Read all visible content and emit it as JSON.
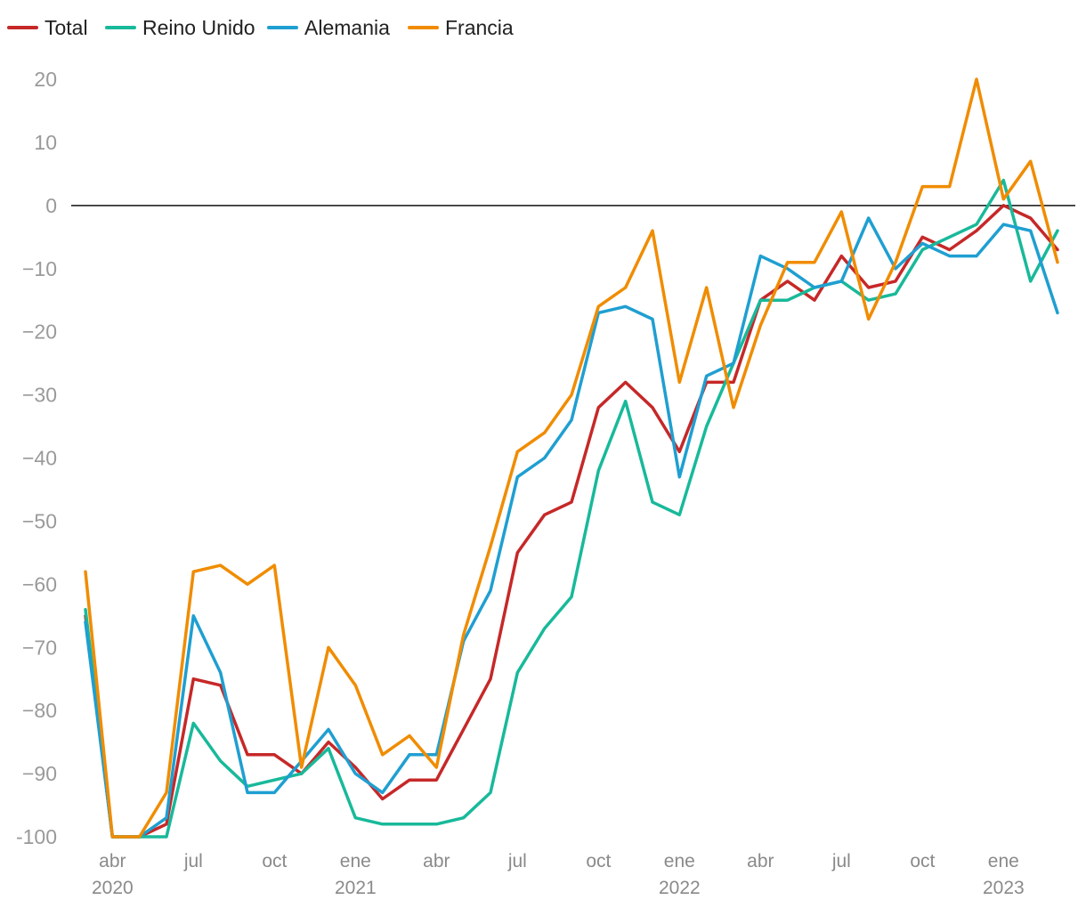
{
  "chart_data": {
    "type": "line",
    "title": "",
    "xlabel": "",
    "ylabel": "",
    "ylim": [
      -100,
      20
    ],
    "yticks": [
      20,
      10,
      0,
      -10,
      -20,
      -30,
      -40,
      -50,
      -60,
      -70,
      -80,
      -90,
      -100
    ],
    "ytick_labels": [
      "20",
      "10",
      "0",
      "−10",
      "−20",
      "−30",
      "−40",
      "−50",
      "−60",
      "−70",
      "−80",
      "−90",
      "-100"
    ],
    "reference_line": 0,
    "grid": false,
    "legend_position": "top-left",
    "x": [
      "2020-03",
      "2020-04",
      "2020-05",
      "2020-06",
      "2020-07",
      "2020-08",
      "2020-09",
      "2020-10",
      "2020-11",
      "2020-12",
      "2021-01",
      "2021-02",
      "2021-03",
      "2021-04",
      "2021-05",
      "2021-06",
      "2021-07",
      "2021-08",
      "2021-09",
      "2021-10",
      "2021-11",
      "2021-12",
      "2022-01",
      "2022-02",
      "2022-03",
      "2022-04",
      "2022-05",
      "2022-06",
      "2022-07",
      "2022-08",
      "2022-09",
      "2022-10",
      "2022-11",
      "2022-12",
      "2023-01",
      "2023-02",
      "2023-03"
    ],
    "x_ticks": [
      {
        "x": "2020-04",
        "label": "abr",
        "year": "2020"
      },
      {
        "x": "2020-07",
        "label": "jul",
        "year": ""
      },
      {
        "x": "2020-10",
        "label": "oct",
        "year": ""
      },
      {
        "x": "2021-01",
        "label": "ene",
        "year": "2021"
      },
      {
        "x": "2021-04",
        "label": "abr",
        "year": ""
      },
      {
        "x": "2021-07",
        "label": "jul",
        "year": ""
      },
      {
        "x": "2021-10",
        "label": "oct",
        "year": ""
      },
      {
        "x": "2022-01",
        "label": "ene",
        "year": "2022"
      },
      {
        "x": "2022-04",
        "label": "abr",
        "year": ""
      },
      {
        "x": "2022-07",
        "label": "jul",
        "year": ""
      },
      {
        "x": "2022-10",
        "label": "oct",
        "year": ""
      },
      {
        "x": "2023-01",
        "label": "ene",
        "year": "2023"
      }
    ],
    "series": [
      {
        "name": "Total",
        "color": "#c62828",
        "values": [
          -65,
          -100,
          -100,
          -98,
          -75,
          -76,
          -87,
          -87,
          -90,
          -85,
          -89,
          -94,
          -91,
          -91,
          -83,
          -75,
          -55,
          -49,
          -47,
          -32,
          -28,
          -32,
          -39,
          -28,
          -28,
          -15,
          -12,
          -15,
          -8,
          -13,
          -12,
          -5,
          -7,
          -4,
          0,
          -2,
          -7
        ]
      },
      {
        "name": "Reino Unido",
        "color": "#18b99a",
        "values": [
          -64,
          -100,
          -100,
          -100,
          -82,
          -88,
          -92,
          -91,
          -90,
          -86,
          -97,
          -98,
          -98,
          -98,
          -97,
          -93,
          -74,
          -67,
          -62,
          -42,
          -31,
          -47,
          -49,
          -35,
          -25,
          -15,
          -15,
          -13,
          -12,
          -15,
          -14,
          -7,
          -5,
          -3,
          4,
          -12,
          -4
        ]
      },
      {
        "name": "Alemania",
        "color": "#1f9fd1",
        "values": [
          -66,
          -100,
          -100,
          -97,
          -65,
          -74,
          -93,
          -93,
          -88,
          -83,
          -90,
          -93,
          -87,
          -87,
          -69,
          -61,
          -43,
          -40,
          -34,
          -17,
          -16,
          -18,
          -43,
          -27,
          -25,
          -8,
          -10,
          -13,
          -12,
          -2,
          -10,
          -6,
          -8,
          -8,
          -3,
          -4,
          -17
        ]
      },
      {
        "name": "Francia",
        "color": "#f08c00",
        "values": [
          -58,
          -100,
          -100,
          -93,
          -58,
          -57,
          -60,
          -57,
          -89,
          -70,
          -76,
          -87,
          -84,
          -89,
          -68,
          -54,
          -39,
          -36,
          -30,
          -16,
          -13,
          -4,
          -28,
          -13,
          -32,
          -19,
          -9,
          -9,
          -1,
          -18,
          -9,
          3,
          3,
          20,
          1,
          7,
          -9
        ]
      }
    ]
  }
}
